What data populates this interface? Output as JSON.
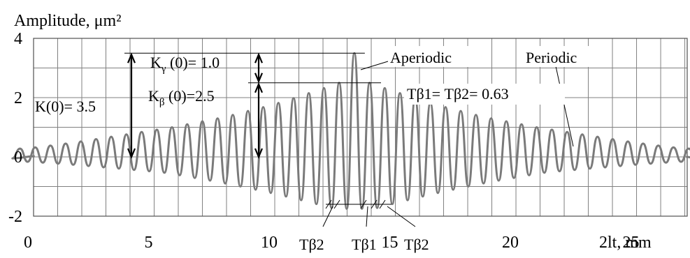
{
  "chart_data": {
    "type": "line",
    "xlabel": "2lt, mm",
    "ylabel": "Amplitude, μm²",
    "xlim": [
      0,
      27.1
    ],
    "ylim": [
      -2,
      4
    ],
    "x_ticks": [
      "0",
      "5",
      "10",
      "15",
      "20",
      "25"
    ],
    "y_ticks": [
      "4",
      "2",
      "0",
      "-2"
    ],
    "grid": true,
    "series": [
      {
        "amplitudes": [
          0.28,
          0.32,
          0.38,
          0.45,
          0.52,
          0.6,
          0.68,
          0.76,
          0.84,
          0.92,
          1.0,
          1.1,
          1.2,
          1.3,
          1.42,
          1.55,
          1.68,
          1.82,
          1.98,
          2.15,
          2.32,
          2.5,
          2.45,
          2.5,
          2.32,
          2.15,
          1.98,
          1.82,
          1.68,
          1.55,
          1.42,
          1.3,
          1.2,
          1.1,
          1.0,
          0.92,
          0.84,
          0.76,
          0.68,
          0.6,
          0.52,
          0.45,
          0.38,
          0.32,
          0.28
        ],
        "period": 0.63,
        "aperiodic_peak": {
          "x": 13.3,
          "y": 3.5
        }
      }
    ],
    "annotations": {
      "k_total": {
        "text": "K(0)= 3.5",
        "y_from": 0,
        "y_to": 3.5
      },
      "k_gamma": {
        "text_main": "K",
        "text_sub": "γ",
        "text_rest": " (0)= 1.0",
        "y_from": 2.5,
        "y_to": 3.5
      },
      "k_beta": {
        "text_main": "K",
        "text_sub": "β",
        "text_rest": " (0)=2.5",
        "y_from": 0,
        "y_to": 2.5
      },
      "periods": {
        "text": "Tβ1= Tβ2= 0.63"
      },
      "aperiodic_label": "Aperiodic",
      "periodic_label": "Periodic",
      "tb2_left": "Tβ2",
      "tb1": "Tβ1",
      "tb2_right": "Tβ2"
    }
  }
}
